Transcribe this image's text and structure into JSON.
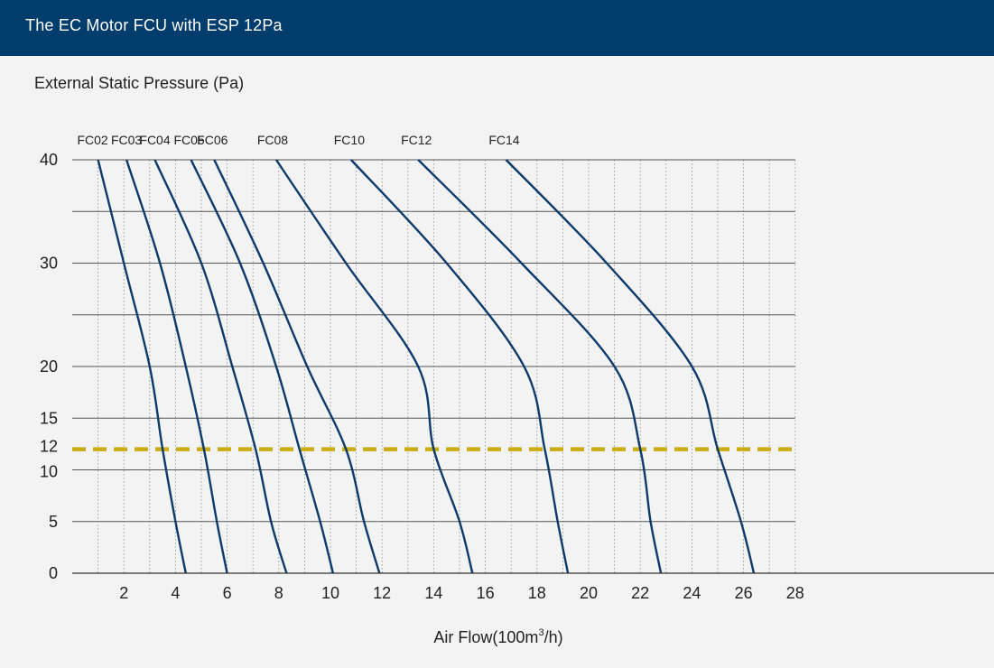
{
  "header": {
    "title": "The EC Motor FCU with ESP 12Pa"
  },
  "colors": {
    "header_bg": "#003c6c",
    "background": "#f3f3f4",
    "curve": "#0d3a6b",
    "reference_line": "#c9ad17",
    "grid": "#555555"
  },
  "chart_data": {
    "type": "line",
    "title": "The EC Motor FCU with ESP 12Pa",
    "ylabel": "External Static Pressure (Pa)",
    "xlabel_main": "Air Flow(100m",
    "xlabel_sup": "3",
    "xlabel_tail": "/h)",
    "xlim": [
      0,
      28
    ],
    "ylim": [
      0,
      40
    ],
    "x_ticks": [
      "2",
      "4",
      "6",
      "8",
      "10",
      "12",
      "14",
      "16",
      "18",
      "20",
      "22",
      "24",
      "26",
      "28"
    ],
    "y_ticks": [
      {
        "v": 0,
        "label": "0"
      },
      {
        "v": 5,
        "label": "5"
      },
      {
        "v": 10,
        "label": "10"
      },
      {
        "v": 12,
        "label": "12"
      },
      {
        "v": 15,
        "label": "15"
      },
      {
        "v": 20,
        "label": "20"
      },
      {
        "v": 30,
        "label": "30"
      },
      {
        "v": 40,
        "label": "40"
      }
    ],
    "grid": true,
    "reference_line": {
      "y": 12,
      "style": "dashed"
    },
    "series": [
      {
        "name": "FC02",
        "points": [
          [
            1,
            40
          ],
          [
            2,
            30
          ],
          [
            3,
            20
          ],
          [
            3.5,
            12
          ],
          [
            4,
            5
          ],
          [
            4.4,
            0
          ]
        ]
      },
      {
        "name": "FC03",
        "points": [
          [
            2.1,
            40
          ],
          [
            3.4,
            30
          ],
          [
            4.4,
            20
          ],
          [
            5.1,
            12
          ],
          [
            5.6,
            5
          ],
          [
            6,
            0
          ]
        ]
      },
      {
        "name": "FC04",
        "points": [
          [
            3.2,
            40
          ],
          [
            5,
            30
          ],
          [
            6.2,
            20
          ],
          [
            7.1,
            12
          ],
          [
            7.7,
            5
          ],
          [
            8.3,
            0
          ]
        ]
      },
      {
        "name": "FC05",
        "points": [
          [
            4.6,
            40
          ],
          [
            6.5,
            30
          ],
          [
            7.9,
            20
          ],
          [
            8.8,
            12
          ],
          [
            9.6,
            5
          ],
          [
            10.1,
            0
          ]
        ]
      },
      {
        "name": "FC06",
        "points": [
          [
            5.5,
            40
          ],
          [
            7.4,
            30
          ],
          [
            9.1,
            20
          ],
          [
            10.6,
            12
          ],
          [
            11.3,
            5
          ],
          [
            11.9,
            0
          ]
        ]
      },
      {
        "name": "FC08",
        "points": [
          [
            7.9,
            40
          ],
          [
            10.6,
            30
          ],
          [
            13.4,
            20
          ],
          [
            14,
            12
          ],
          [
            15,
            5
          ],
          [
            15.5,
            0
          ]
        ]
      },
      {
        "name": "FC10",
        "points": [
          [
            10.8,
            40
          ],
          [
            14.5,
            30
          ],
          [
            17.5,
            20
          ],
          [
            18.3,
            12
          ],
          [
            18.8,
            5
          ],
          [
            19.2,
            0
          ]
        ]
      },
      {
        "name": "FC12",
        "points": [
          [
            13.4,
            40
          ],
          [
            17.4,
            30
          ],
          [
            21,
            20
          ],
          [
            22,
            12
          ],
          [
            22.4,
            5
          ],
          [
            22.8,
            0
          ]
        ]
      },
      {
        "name": "FC14",
        "points": [
          [
            16.8,
            40
          ],
          [
            20.7,
            30
          ],
          [
            24,
            20
          ],
          [
            25,
            12
          ],
          [
            25.9,
            5
          ],
          [
            26.4,
            0
          ]
        ]
      }
    ]
  }
}
